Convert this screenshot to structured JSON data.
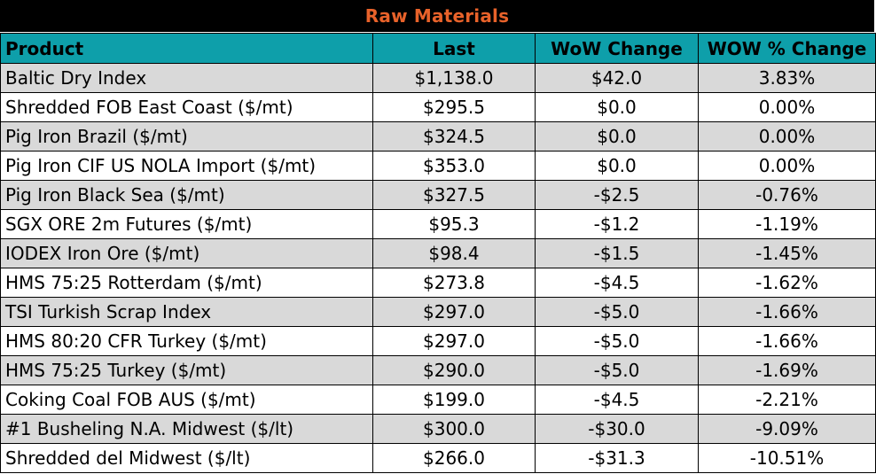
{
  "title": "Raw Materials",
  "colors": {
    "title_bg": "#000000",
    "title_text": "#e8622a",
    "header_bg": "#0e9faa",
    "row_shaded": "#d9d9d9",
    "row_plain": "#ffffff"
  },
  "columns": [
    "Product",
    "Last",
    "WoW Change",
    "WOW % Change"
  ],
  "rows": [
    {
      "product": "Baltic Dry Index",
      "last": "$1,138.0",
      "wow_change": "$42.0",
      "wow_pct": "3.83%"
    },
    {
      "product": "Shredded FOB East Coast ($/mt)",
      "last": "$295.5",
      "wow_change": "$0.0",
      "wow_pct": "0.00%"
    },
    {
      "product": "Pig Iron Brazil ($/mt)",
      "last": "$324.5",
      "wow_change": "$0.0",
      "wow_pct": "0.00%"
    },
    {
      "product": "Pig Iron CIF US NOLA Import ($/mt)",
      "last": "$353.0",
      "wow_change": "$0.0",
      "wow_pct": "0.00%"
    },
    {
      "product": "Pig Iron Black Sea ($/mt)",
      "last": "$327.5",
      "wow_change": "-$2.5",
      "wow_pct": "-0.76%"
    },
    {
      "product": "SGX ORE 2m Futures ($/mt)",
      "last": "$95.3",
      "wow_change": "-$1.2",
      "wow_pct": "-1.19%"
    },
    {
      "product": "IODEX  Iron Ore ($/mt)",
      "last": "$98.4",
      "wow_change": "-$1.5",
      "wow_pct": "-1.45%"
    },
    {
      "product": "HMS 75:25 Rotterdam ($/mt)",
      "last": "$273.8",
      "wow_change": "-$4.5",
      "wow_pct": "-1.62%"
    },
    {
      "product": "TSI Turkish Scrap Index",
      "last": "$297.0",
      "wow_change": "-$5.0",
      "wow_pct": "-1.66%"
    },
    {
      "product": "HMS 80:20 CFR Turkey ($/mt)",
      "last": "$297.0",
      "wow_change": "-$5.0",
      "wow_pct": "-1.66%"
    },
    {
      "product": "HMS 75:25 Turkey ($/mt)",
      "last": "$290.0",
      "wow_change": "-$5.0",
      "wow_pct": "-1.69%"
    },
    {
      "product": "Coking Coal FOB AUS ($/mt)",
      "last": "$199.0",
      "wow_change": "-$4.5",
      "wow_pct": "-2.21%"
    },
    {
      "product": "#1 Busheling N.A. Midwest ($/lt)",
      "last": "$300.0",
      "wow_change": "-$30.0",
      "wow_pct": "-9.09%"
    },
    {
      "product": "Shredded del  Midwest ($/lt)",
      "last": "$266.0",
      "wow_change": "-$31.3",
      "wow_pct": "-10.51%"
    }
  ]
}
